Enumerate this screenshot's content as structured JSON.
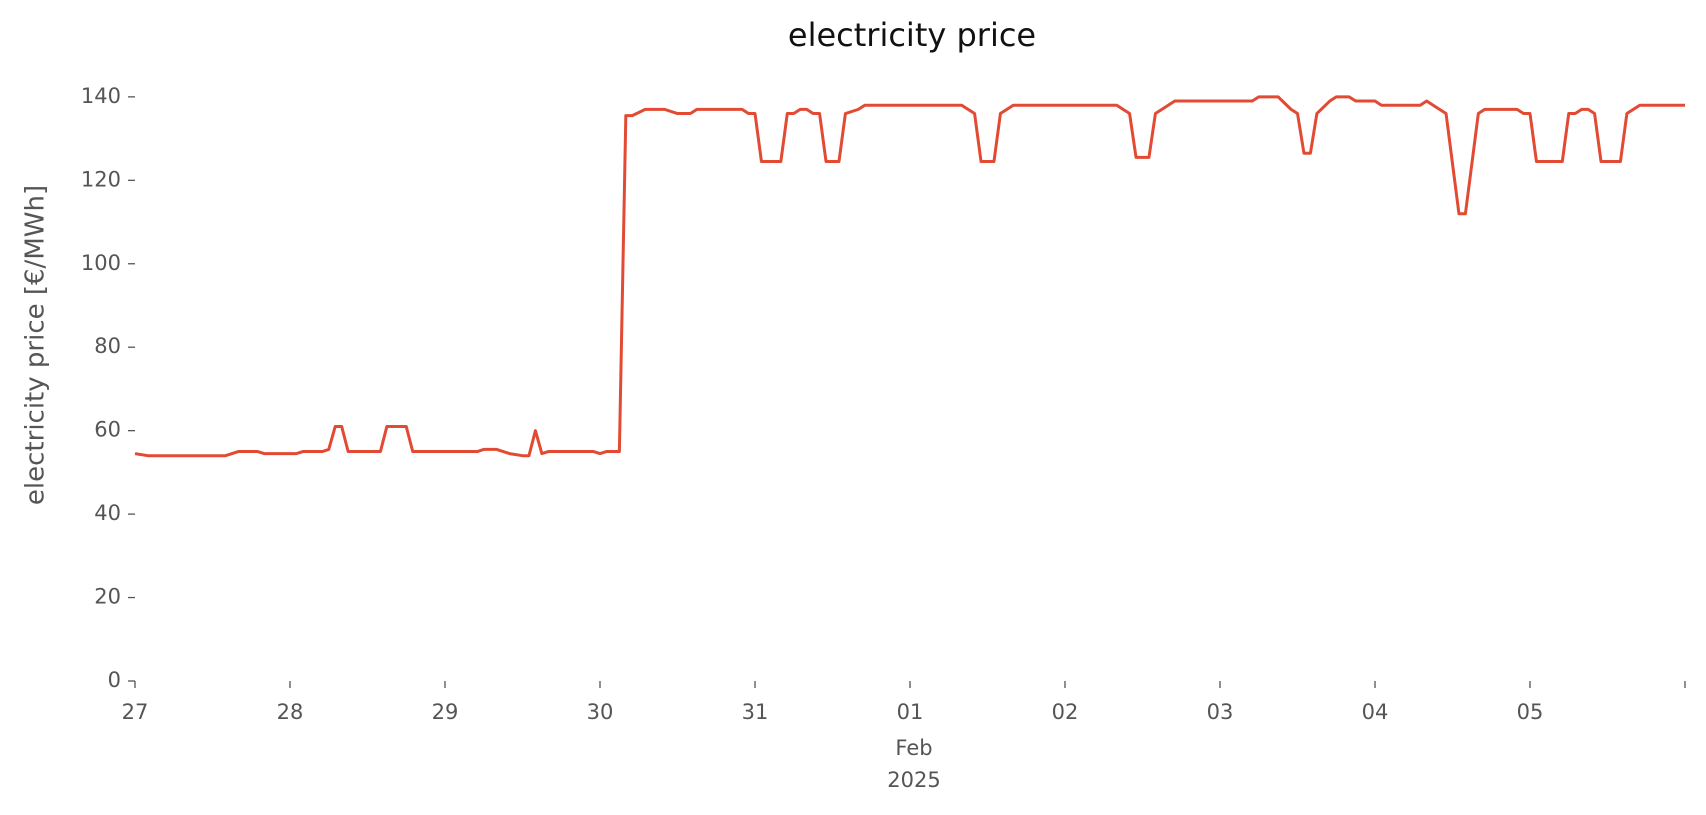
{
  "chart_data": {
    "type": "line",
    "title": "electricity price",
    "ylabel": "electricity price [€/MWh]",
    "x_month_label": "Feb",
    "x_year_label": "2025",
    "x": [
      0,
      2,
      14,
      16,
      19,
      20,
      25,
      26,
      29,
      30,
      31,
      32,
      33,
      38,
      39,
      42,
      43,
      47,
      48,
      53,
      54,
      56,
      58,
      60,
      61,
      62,
      63,
      64,
      71,
      72,
      73,
      75,
      76,
      77,
      79,
      82,
      84,
      86,
      87,
      94,
      95,
      96,
      97,
      100,
      101,
      102,
      103,
      104,
      105,
      106,
      107,
      109,
      110,
      112,
      113,
      128,
      130,
      131,
      133,
      134,
      135,
      136,
      152,
      154,
      155,
      157,
      158,
      159,
      161,
      173,
      174,
      177,
      178,
      179,
      180,
      181,
      182,
      183,
      184,
      185,
      186,
      188,
      189,
      192,
      193,
      199,
      200,
      201,
      203,
      205,
      206,
      208,
      209,
      214,
      215,
      216,
      217,
      221,
      222,
      223,
      224,
      225,
      226,
      227,
      230,
      231,
      232,
      233,
      240
    ],
    "series": [
      {
        "name": "electricity price",
        "color": "#e24a33",
        "values": [
          54.5,
          54,
          54,
          55,
          55,
          54.5,
          54.5,
          55,
          55,
          55.5,
          61,
          61,
          55,
          55,
          61,
          61,
          55,
          55,
          55,
          55,
          55.5,
          55.5,
          54.5,
          54,
          54,
          60,
          54.5,
          55,
          55,
          54.5,
          55,
          55,
          135.5,
          135.5,
          137,
          137,
          136,
          136,
          137,
          137,
          136,
          136,
          124.5,
          124.5,
          136,
          136,
          137,
          137,
          136,
          136,
          124.5,
          124.5,
          136,
          137,
          138,
          138,
          136,
          124.5,
          124.5,
          136,
          137,
          138,
          138,
          136,
          125.5,
          125.5,
          136,
          137,
          139,
          139,
          140,
          140,
          138.5,
          137,
          136,
          126.5,
          126.5,
          136,
          137.5,
          139,
          140,
          140,
          139,
          139,
          138,
          138,
          139,
          138,
          136,
          112,
          112,
          136,
          137,
          137,
          136,
          136,
          124.5,
          124.5,
          136,
          136,
          137,
          137,
          136,
          124.5,
          124.5,
          136,
          137,
          138,
          138
        ]
      }
    ],
    "xlim": [
      0,
      240
    ],
    "xticks": [
      {
        "value": 0,
        "label": "27"
      },
      {
        "value": 24,
        "label": "28"
      },
      {
        "value": 48,
        "label": "29"
      },
      {
        "value": 72,
        "label": "30"
      },
      {
        "value": 96,
        "label": "31"
      },
      {
        "value": 120,
        "label": "01"
      },
      {
        "value": 144,
        "label": "02"
      },
      {
        "value": 168,
        "label": "03"
      },
      {
        "value": 192,
        "label": "04"
      },
      {
        "value": 216,
        "label": "05"
      },
      {
        "value": 240,
        "label": null
      }
    ],
    "ylim": [
      0,
      145
    ],
    "yticks": [
      0,
      20,
      40,
      60,
      80,
      100,
      120,
      140
    ],
    "grid": false
  }
}
